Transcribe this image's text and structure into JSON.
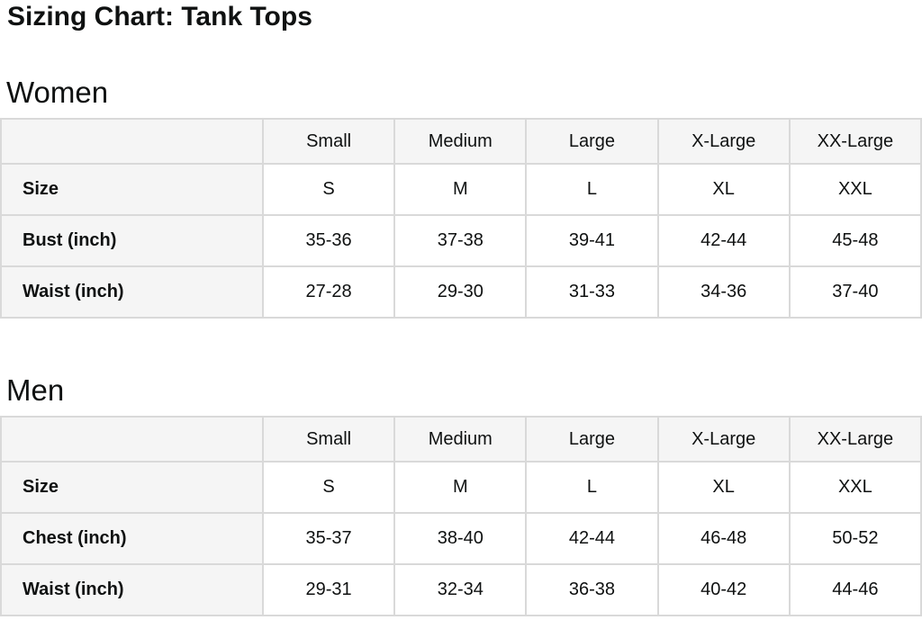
{
  "title": "Sizing Chart: Tank Tops",
  "colors": {
    "text": "#0f1111",
    "table_header_bg": "#f5f5f5",
    "table_border": "#d9d9d9",
    "cell_bg": "#ffffff"
  },
  "women": {
    "heading": "Women",
    "columns": [
      "",
      "Small",
      "Medium",
      "Large",
      "X-Large",
      "XX-Large"
    ],
    "rows": [
      {
        "label": "Size",
        "values": [
          "S",
          "M",
          "L",
          "XL",
          "XXL"
        ]
      },
      {
        "label": "Bust (inch)",
        "values": [
          "35-36",
          "37-38",
          "39-41",
          "42-44",
          "45-48"
        ]
      },
      {
        "label": "Waist (inch)",
        "values": [
          "27-28",
          "29-30",
          "31-33",
          "34-36",
          "37-40"
        ]
      }
    ]
  },
  "men": {
    "heading": "Men",
    "columns": [
      "",
      "Small",
      "Medium",
      "Large",
      "X-Large",
      "XX-Large"
    ],
    "rows": [
      {
        "label": "Size",
        "values": [
          "S",
          "M",
          "L",
          "XL",
          "XXL"
        ]
      },
      {
        "label": "Chest (inch)",
        "values": [
          "35-37",
          "38-40",
          "42-44",
          "46-48",
          "50-52"
        ]
      },
      {
        "label": "Waist (inch)",
        "values": [
          "29-31",
          "32-34",
          "36-38",
          "40-42",
          "44-46"
        ]
      }
    ]
  }
}
